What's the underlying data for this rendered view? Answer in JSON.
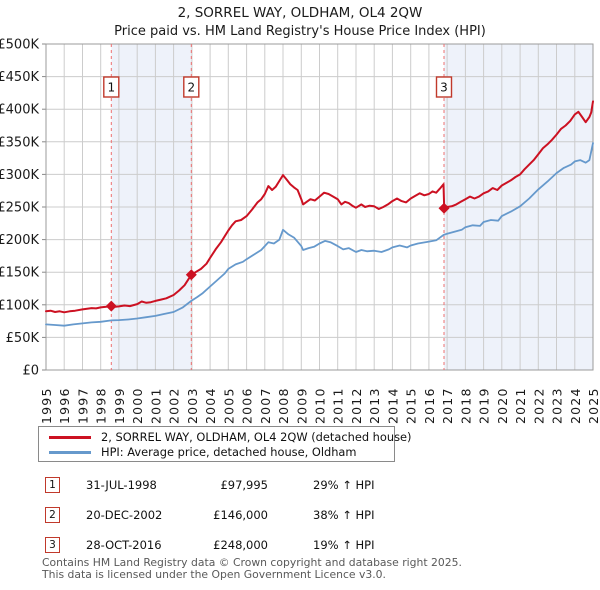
{
  "header": {
    "title": "2, SORREL WAY, OLDHAM, OL4 2QW",
    "subtitle": "Price paid vs. HM Land Registry's House Price Index (HPI)"
  },
  "chart_data": {
    "type": "line",
    "title": "2, SORREL WAY, OLDHAM, OL4 2QW",
    "subtitle": "Price paid vs. HM Land Registry's House Price Index (HPI)",
    "x_axis": {
      "min": 1995,
      "max": 2025,
      "ticks": [
        "1995",
        "1996",
        "1997",
        "1998",
        "1999",
        "2000",
        "2001",
        "2002",
        "2003",
        "2004",
        "2005",
        "2006",
        "2007",
        "2008",
        "2009",
        "2010",
        "2011",
        "2012",
        "2013",
        "2014",
        "2015",
        "2016",
        "2017",
        "2018",
        "2019",
        "2020",
        "2021",
        "2022",
        "2023",
        "2024",
        "2025"
      ]
    },
    "y_axis": {
      "min_k": 0,
      "max_k": 500,
      "step_k": 50,
      "ticks": [
        "£0",
        "£50K",
        "£100K",
        "£150K",
        "£200K",
        "£250K",
        "£300K",
        "£350K",
        "£400K",
        "£450K",
        "£500K"
      ]
    },
    "grid": true,
    "legend_position": "bottom",
    "colors": {
      "property": "#cc1122",
      "hpi": "#6699cc",
      "sale_dash": "#ee7070",
      "band": "#eef2fa",
      "grid": "#cccccc",
      "plot_border": "#9b9b9b",
      "marker_box_border": "#c0392b",
      "axis_text": "#1a1a1a"
    },
    "ownership_bands": [
      [
        1998.58,
        2002.97
      ],
      [
        2016.83,
        2025
      ]
    ],
    "sales": [
      {
        "label": "1",
        "year": 1998.58,
        "date": "31-JUL-1998",
        "price_k": 98,
        "price": "£97,995",
        "vs_hpi": "29% ↑ HPI"
      },
      {
        "label": "2",
        "year": 2002.97,
        "date": "20-DEC-2002",
        "price_k": 146,
        "price": "£146,000",
        "vs_hpi": "38% ↑ HPI"
      },
      {
        "label": "3",
        "year": 2016.83,
        "date": "28-OCT-2016",
        "price_k": 248,
        "price": "£248,000",
        "vs_hpi": "19% ↑ HPI"
      }
    ],
    "series": [
      {
        "id": "property",
        "name": "2, SORREL WAY, OLDHAM, OL4 2QW (detached house)",
        "color": "#cc1122",
        "width": 2,
        "points_year_gbp_k": [
          [
            1995.0,
            90
          ],
          [
            1995.25,
            91
          ],
          [
            1995.5,
            89
          ],
          [
            1995.75,
            90
          ],
          [
            1996.0,
            88.5
          ],
          [
            1996.3,
            90
          ],
          [
            1996.6,
            91
          ],
          [
            1997.0,
            93
          ],
          [
            1997.5,
            95
          ],
          [
            1997.75,
            94.5
          ],
          [
            1998.0,
            96
          ],
          [
            1998.3,
            97
          ],
          [
            1998.58,
            98
          ],
          [
            1998.8,
            97
          ],
          [
            1999.0,
            97.5
          ],
          [
            1999.3,
            99
          ],
          [
            1999.6,
            98
          ],
          [
            2000.0,
            101
          ],
          [
            2000.25,
            105
          ],
          [
            2000.5,
            103
          ],
          [
            2000.75,
            104
          ],
          [
            2001.0,
            106
          ],
          [
            2001.3,
            108
          ],
          [
            2001.6,
            110
          ],
          [
            2002.0,
            115
          ],
          [
            2002.3,
            122
          ],
          [
            2002.6,
            130
          ],
          [
            2002.97,
            146
          ],
          [
            2003.2,
            150
          ],
          [
            2003.5,
            155
          ],
          [
            2003.8,
            163
          ],
          [
            2004.0,
            172
          ],
          [
            2004.3,
            185
          ],
          [
            2004.6,
            196
          ],
          [
            2005.0,
            214
          ],
          [
            2005.2,
            222
          ],
          [
            2005.4,
            228
          ],
          [
            2005.7,
            230
          ],
          [
            2006.0,
            236
          ],
          [
            2006.3,
            246
          ],
          [
            2006.6,
            257
          ],
          [
            2006.8,
            262
          ],
          [
            2007.0,
            270
          ],
          [
            2007.2,
            282
          ],
          [
            2007.4,
            276
          ],
          [
            2007.6,
            281
          ],
          [
            2007.8,
            290
          ],
          [
            2008.0,
            299
          ],
          [
            2008.2,
            292
          ],
          [
            2008.4,
            285
          ],
          [
            2008.6,
            280
          ],
          [
            2008.8,
            276
          ],
          [
            2009.0,
            262
          ],
          [
            2009.1,
            254
          ],
          [
            2009.3,
            258
          ],
          [
            2009.5,
            262
          ],
          [
            2009.75,
            260
          ],
          [
            2010.0,
            266
          ],
          [
            2010.25,
            272
          ],
          [
            2010.5,
            270
          ],
          [
            2010.75,
            266
          ],
          [
            2011.0,
            262
          ],
          [
            2011.2,
            254
          ],
          [
            2011.4,
            258
          ],
          [
            2011.6,
            256
          ],
          [
            2011.8,
            252
          ],
          [
            2012.0,
            249
          ],
          [
            2012.3,
            254
          ],
          [
            2012.5,
            250
          ],
          [
            2012.75,
            252
          ],
          [
            2013.0,
            251
          ],
          [
            2013.25,
            247
          ],
          [
            2013.5,
            250
          ],
          [
            2013.75,
            254
          ],
          [
            2014.0,
            259
          ],
          [
            2014.25,
            263
          ],
          [
            2014.5,
            259
          ],
          [
            2014.75,
            257
          ],
          [
            2015.0,
            263
          ],
          [
            2015.25,
            267
          ],
          [
            2015.5,
            271
          ],
          [
            2015.75,
            268
          ],
          [
            2016.0,
            270
          ],
          [
            2016.2,
            274
          ],
          [
            2016.4,
            272
          ],
          [
            2016.6,
            278
          ],
          [
            2016.8,
            285
          ],
          [
            2016.84,
            248
          ],
          [
            2017.0,
            250
          ],
          [
            2017.25,
            251
          ],
          [
            2017.5,
            254
          ],
          [
            2017.75,
            258
          ],
          [
            2018.0,
            262
          ],
          [
            2018.25,
            266
          ],
          [
            2018.5,
            263
          ],
          [
            2018.75,
            266
          ],
          [
            2019.0,
            271
          ],
          [
            2019.25,
            274
          ],
          [
            2019.5,
            279
          ],
          [
            2019.75,
            276
          ],
          [
            2020.0,
            283
          ],
          [
            2020.25,
            287
          ],
          [
            2020.5,
            291
          ],
          [
            2020.75,
            296
          ],
          [
            2021.0,
            300
          ],
          [
            2021.25,
            308
          ],
          [
            2021.5,
            315
          ],
          [
            2021.75,
            322
          ],
          [
            2022.0,
            331
          ],
          [
            2022.25,
            340
          ],
          [
            2022.5,
            346
          ],
          [
            2022.75,
            353
          ],
          [
            2023.0,
            361
          ],
          [
            2023.25,
            370
          ],
          [
            2023.5,
            375
          ],
          [
            2023.75,
            382
          ],
          [
            2024.0,
            392
          ],
          [
            2024.2,
            396
          ],
          [
            2024.4,
            388
          ],
          [
            2024.6,
            380
          ],
          [
            2024.8,
            388
          ],
          [
            2024.9,
            395
          ],
          [
            2025.0,
            412
          ]
        ]
      },
      {
        "id": "hpi",
        "name": "HPI: Average price, detached house, Oldham",
        "color": "#6699cc",
        "width": 1.8,
        "points_year_gbp_k": [
          [
            1995.0,
            70
          ],
          [
            1995.5,
            69
          ],
          [
            1996.0,
            68
          ],
          [
            1996.5,
            70
          ],
          [
            1997.0,
            71.5
          ],
          [
            1997.5,
            73
          ],
          [
            1998.0,
            74
          ],
          [
            1998.58,
            76
          ],
          [
            1999.0,
            76.5
          ],
          [
            1999.5,
            77.5
          ],
          [
            2000.0,
            79
          ],
          [
            2000.5,
            81
          ],
          [
            2001.0,
            83
          ],
          [
            2001.5,
            86
          ],
          [
            2002.0,
            89
          ],
          [
            2002.5,
            96
          ],
          [
            2002.97,
            106
          ],
          [
            2003.3,
            112
          ],
          [
            2003.6,
            118
          ],
          [
            2004.0,
            128
          ],
          [
            2004.4,
            138
          ],
          [
            2004.8,
            148
          ],
          [
            2005.0,
            155
          ],
          [
            2005.4,
            162
          ],
          [
            2005.8,
            166
          ],
          [
            2006.0,
            170
          ],
          [
            2006.4,
            177
          ],
          [
            2006.8,
            184
          ],
          [
            2007.0,
            190
          ],
          [
            2007.2,
            196
          ],
          [
            2007.5,
            194
          ],
          [
            2007.8,
            200
          ],
          [
            2008.0,
            215
          ],
          [
            2008.3,
            208
          ],
          [
            2008.6,
            203
          ],
          [
            2009.0,
            190
          ],
          [
            2009.1,
            184
          ],
          [
            2009.4,
            187
          ],
          [
            2009.7,
            189
          ],
          [
            2010.0,
            194
          ],
          [
            2010.3,
            198
          ],
          [
            2010.6,
            196
          ],
          [
            2011.0,
            190
          ],
          [
            2011.3,
            185
          ],
          [
            2011.6,
            187
          ],
          [
            2012.0,
            181
          ],
          [
            2012.3,
            184
          ],
          [
            2012.6,
            182
          ],
          [
            2013.0,
            183
          ],
          [
            2013.4,
            181
          ],
          [
            2013.8,
            185
          ],
          [
            2014.0,
            188
          ],
          [
            2014.4,
            191
          ],
          [
            2014.8,
            188
          ],
          [
            2015.0,
            191
          ],
          [
            2015.4,
            194
          ],
          [
            2015.8,
            196
          ],
          [
            2016.0,
            197
          ],
          [
            2016.4,
            199
          ],
          [
            2016.8,
            207
          ],
          [
            2017.0,
            209
          ],
          [
            2017.4,
            212
          ],
          [
            2017.8,
            215
          ],
          [
            2018.0,
            219
          ],
          [
            2018.4,
            222
          ],
          [
            2018.8,
            221
          ],
          [
            2019.0,
            227
          ],
          [
            2019.4,
            230
          ],
          [
            2019.8,
            229
          ],
          [
            2020.0,
            236
          ],
          [
            2020.5,
            243
          ],
          [
            2021.0,
            251
          ],
          [
            2021.5,
            263
          ],
          [
            2022.0,
            277
          ],
          [
            2022.5,
            289
          ],
          [
            2023.0,
            302
          ],
          [
            2023.4,
            310
          ],
          [
            2023.8,
            315
          ],
          [
            2024.0,
            320
          ],
          [
            2024.3,
            322
          ],
          [
            2024.6,
            318
          ],
          [
            2024.8,
            322
          ],
          [
            2025.0,
            348
          ]
        ]
      }
    ]
  },
  "legend": {
    "items": [
      {
        "label": "2, SORREL WAY, OLDHAM, OL4 2QW (detached house)",
        "color": "#cc1122"
      },
      {
        "label": "HPI: Average price, detached house, Oldham",
        "color": "#6699cc"
      }
    ]
  },
  "table": {
    "rows": [
      {
        "num": "1",
        "date": "31-JUL-1998",
        "price": "£97,995",
        "hpi": "29% ↑ HPI"
      },
      {
        "num": "2",
        "date": "20-DEC-2002",
        "price": "£146,000",
        "hpi": "38% ↑ HPI"
      },
      {
        "num": "3",
        "date": "28-OCT-2016",
        "price": "£248,000",
        "hpi": "19% ↑ HPI"
      }
    ]
  },
  "footer": {
    "line1": "Contains HM Land Registry data © Crown copyright and database right 2025.",
    "line2": "This data is licensed under the Open Government Licence v3.0."
  }
}
